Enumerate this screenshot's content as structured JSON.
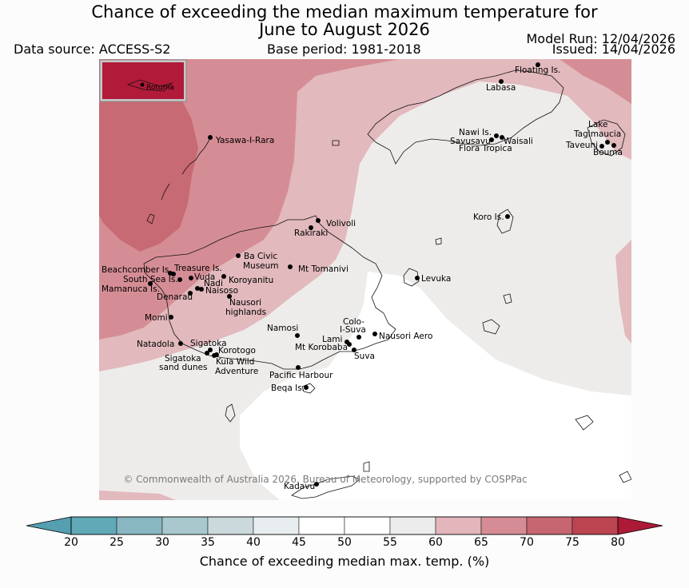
{
  "title": {
    "line1": "Chance of exceeding the median maximum temperature for",
    "line2": "June to August 2026"
  },
  "meta": {
    "data_source": "Data source: ACCESS-S2",
    "base_period": "Base period: 1981-2018",
    "model_run": "Model Run: 12/04/2026",
    "issued": "Issued: 14/04/2026"
  },
  "inset": {
    "label": "Rotuma"
  },
  "places": [
    {
      "name": "Floating Is."
    },
    {
      "name": "Labasa"
    },
    {
      "name": "Yasawa-I-Rara"
    },
    {
      "name": "Nawi Is."
    },
    {
      "name": "Savusavu"
    },
    {
      "name": "Waisali"
    },
    {
      "name": "Flora Tropica"
    },
    {
      "name": "Lake"
    },
    {
      "name": "Tagimaucia"
    },
    {
      "name": "Taveuni"
    },
    {
      "name": "Bouma"
    },
    {
      "name": "Koro Is."
    },
    {
      "name": "Volivoli"
    },
    {
      "name": "Rakiraki"
    },
    {
      "name": "Ba Civic"
    },
    {
      "name": "Museum"
    },
    {
      "name": "Mt Tomanivi"
    },
    {
      "name": "Levuka"
    },
    {
      "name": "Beachcomber Is."
    },
    {
      "name": "Treasure Is."
    },
    {
      "name": "South Sea Is."
    },
    {
      "name": "Vuda"
    },
    {
      "name": "Koroyanitu"
    },
    {
      "name": "Mamanuca Is."
    },
    {
      "name": "Nadi"
    },
    {
      "name": "Denarau"
    },
    {
      "name": "Naisoso"
    },
    {
      "name": "Nausori"
    },
    {
      "name": "highlands"
    },
    {
      "name": "Momi"
    },
    {
      "name": "Namosi"
    },
    {
      "name": "Colo-"
    },
    {
      "name": "I-Suva"
    },
    {
      "name": "Lami"
    },
    {
      "name": "Nausori Aero"
    },
    {
      "name": "Mt Korobaba"
    },
    {
      "name": "Suva"
    },
    {
      "name": "Natadola"
    },
    {
      "name": "Sigatoka"
    },
    {
      "name": "Korotogo"
    },
    {
      "name": "Sigatoka"
    },
    {
      "name": "sand dunes"
    },
    {
      "name": "Kula Wild"
    },
    {
      "name": "Adventure"
    },
    {
      "name": "Pacific Harbour"
    },
    {
      "name": "Beqa Is."
    },
    {
      "name": "Kadavu"
    }
  ],
  "copyright": "© Commonwealth of Australia 2026, Bureau of Meteorology, supported by COSPPac",
  "colorbar": {
    "label": "Chance of exceeding median max. temp. (%)",
    "ticks": [
      "20",
      "25",
      "30",
      "35",
      "40",
      "45",
      "50",
      "55",
      "60",
      "65",
      "70",
      "75",
      "80"
    ],
    "colors": [
      "#62a9b8",
      "#88b6c1",
      "#a8c8cd",
      "#cbd8dc",
      "#e8eeef",
      "#ffffff",
      "#ffffff",
      "#ececec",
      "#e2b6bb",
      "#d58c94",
      "#c66670",
      "#bb4450"
    ],
    "under_color": "#55a0b0",
    "over_color": "#ad1a38"
  },
  "legend_colors": {
    "c55_60": "#eeeceb",
    "c60_65": "#e2b9bd",
    "c65_70": "#d58d95",
    "c70_75": "#c86a73",
    "c45_55": "#ffffff",
    "inset": "#b11a38"
  }
}
